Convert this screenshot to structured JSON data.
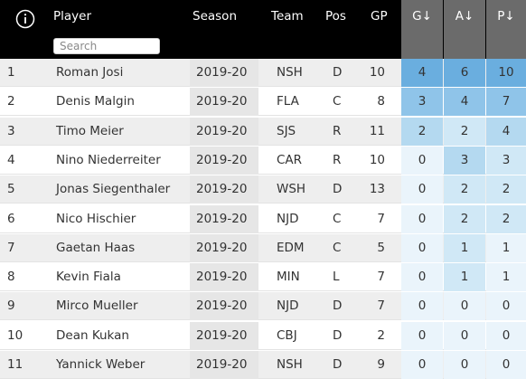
{
  "header": {
    "player": "Player",
    "season": "Season",
    "team": "Team",
    "pos": "Pos",
    "gp": "GP",
    "g": "G↓",
    "a": "A↓",
    "p": "P↓",
    "search_placeholder": "Search",
    "info_icon": "info-circle-icon"
  },
  "colors": {
    "header_bg": "#000000",
    "sorted_header_bg": "#6b6b6b",
    "row_alt": "#eeeeee",
    "season_bg": "#e6e6e6",
    "stat_scale": [
      "#eaf4fb",
      "#d0e8f6",
      "#b4d9f0",
      "#8fc4e9",
      "#6aaedf"
    ]
  },
  "rows": [
    {
      "rank": "1",
      "player": "Roman Josi",
      "season": "2019-20",
      "team": "NSH",
      "pos": "D",
      "gp": "10",
      "g": "4",
      "a": "6",
      "p": "10"
    },
    {
      "rank": "2",
      "player": "Denis Malgin",
      "season": "2019-20",
      "team": "FLA",
      "pos": "C",
      "gp": "8",
      "g": "3",
      "a": "4",
      "p": "7"
    },
    {
      "rank": "3",
      "player": "Timo Meier",
      "season": "2019-20",
      "team": "SJS",
      "pos": "R",
      "gp": "11",
      "g": "2",
      "a": "2",
      "p": "4"
    },
    {
      "rank": "4",
      "player": "Nino Niederreiter",
      "season": "2019-20",
      "team": "CAR",
      "pos": "R",
      "gp": "10",
      "g": "0",
      "a": "3",
      "p": "3"
    },
    {
      "rank": "5",
      "player": "Jonas Siegenthaler",
      "season": "2019-20",
      "team": "WSH",
      "pos": "D",
      "gp": "13",
      "g": "0",
      "a": "2",
      "p": "2"
    },
    {
      "rank": "6",
      "player": "Nico Hischier",
      "season": "2019-20",
      "team": "NJD",
      "pos": "C",
      "gp": "7",
      "g": "0",
      "a": "2",
      "p": "2"
    },
    {
      "rank": "7",
      "player": "Gaetan Haas",
      "season": "2019-20",
      "team": "EDM",
      "pos": "C",
      "gp": "5",
      "g": "0",
      "a": "1",
      "p": "1"
    },
    {
      "rank": "8",
      "player": "Kevin Fiala",
      "season": "2019-20",
      "team": "MIN",
      "pos": "L",
      "gp": "7",
      "g": "0",
      "a": "1",
      "p": "1"
    },
    {
      "rank": "9",
      "player": "Mirco Mueller",
      "season": "2019-20",
      "team": "NJD",
      "pos": "D",
      "gp": "7",
      "g": "0",
      "a": "0",
      "p": "0"
    },
    {
      "rank": "10",
      "player": "Dean Kukan",
      "season": "2019-20",
      "team": "CBJ",
      "pos": "D",
      "gp": "2",
      "g": "0",
      "a": "0",
      "p": "0"
    },
    {
      "rank": "11",
      "player": "Yannick Weber",
      "season": "2019-20",
      "team": "NSH",
      "pos": "D",
      "gp": "9",
      "g": "0",
      "a": "0",
      "p": "0"
    }
  ]
}
